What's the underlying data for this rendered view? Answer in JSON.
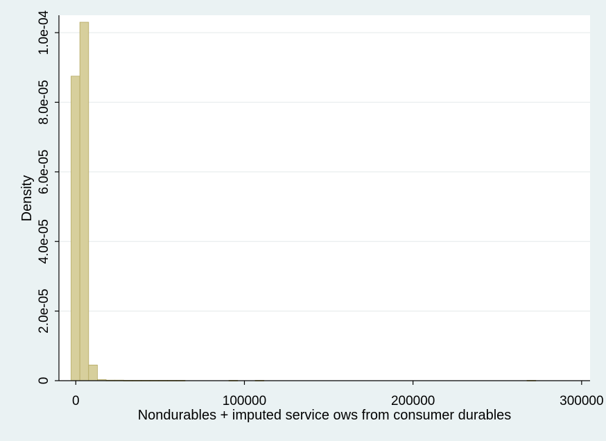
{
  "colors": {
    "background": "#eaf2f3",
    "plot_background": "#ffffff",
    "bar_fill": "#d7cf9c",
    "bar_stroke": "#b3a760",
    "grid": "#e9edee",
    "axis": "#000000"
  },
  "chart_data": {
    "type": "bar",
    "title": "",
    "xlabel": "Nondurables + imputed service ows from consumer durables",
    "ylabel": "Density",
    "xlim": [
      -10000,
      305000
    ],
    "ylim": [
      0,
      0.000105
    ],
    "grid": true,
    "x_ticks": [
      {
        "value": 0,
        "label": "0"
      },
      {
        "value": 100000,
        "label": "100000"
      },
      {
        "value": 200000,
        "label": "200000"
      },
      {
        "value": 300000,
        "label": "300000"
      }
    ],
    "y_ticks": [
      {
        "value": 0,
        "label": "0"
      },
      {
        "value": 2e-05,
        "label": "2.0e-05"
      },
      {
        "value": 4e-05,
        "label": "4.0e-05"
      },
      {
        "value": 6e-05,
        "label": "6.0e-05"
      },
      {
        "value": 8e-05,
        "label": "8.0e-05"
      },
      {
        "value": 0.0001,
        "label": "1.0e-04"
      }
    ],
    "bin_width": 5200,
    "bins": [
      {
        "x0": -2800,
        "density": 8.75e-05
      },
      {
        "x0": 2400,
        "density": 0.000103
      },
      {
        "x0": 7600,
        "density": 4.5e-06
      },
      {
        "x0": 12800,
        "density": 3e-07
      },
      {
        "x0": 18000,
        "density": 1.5e-07
      },
      {
        "x0": 23200,
        "density": 1.5e-07
      },
      {
        "x0": 28400,
        "density": 1e-07
      },
      {
        "x0": 33600,
        "density": 1e-07
      },
      {
        "x0": 38800,
        "density": 1e-07
      },
      {
        "x0": 44000,
        "density": 1e-07
      },
      {
        "x0": 49200,
        "density": 1e-07
      },
      {
        "x0": 54400,
        "density": 1e-07
      },
      {
        "x0": 59600,
        "density": 1e-07
      },
      {
        "x0": 90800,
        "density": 1e-07
      },
      {
        "x0": 106400,
        "density": 1e-07
      },
      {
        "x0": 267600,
        "density": 1e-07
      }
    ]
  }
}
